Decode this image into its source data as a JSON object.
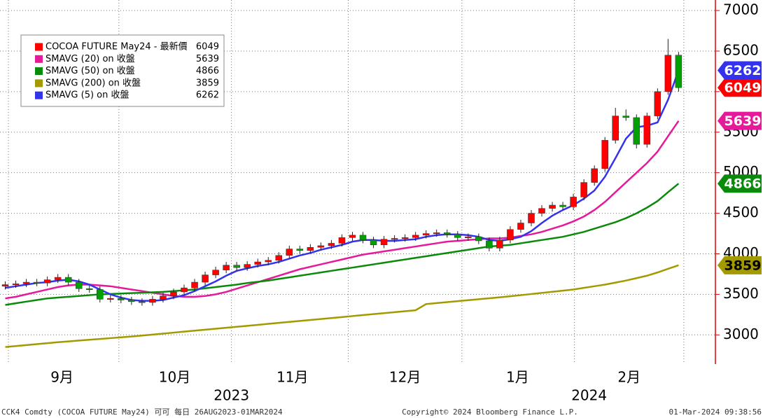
{
  "chart_data": {
    "type": "candlestick",
    "xlim": [
      0,
      68
    ],
    "ylim": [
      2640,
      7130
    ],
    "yticks": [
      3000,
      3500,
      4000,
      4500,
      5000,
      5500,
      6000,
      6500,
      7000
    ],
    "xgrid": [
      0.8,
      11.3,
      22,
      33.1,
      43.9,
      54.6,
      65
    ],
    "xticks": [
      {
        "value": 5.9,
        "label": "9月"
      },
      {
        "value": 16.6,
        "label": "10月"
      },
      {
        "value": 27.8,
        "label": "11月"
      },
      {
        "value": 38.5,
        "label": "12月"
      },
      {
        "value": 49.2,
        "label": "1月"
      },
      {
        "value": 59.8,
        "label": "2月"
      }
    ],
    "years": [
      {
        "value": 22,
        "label": "2023"
      },
      {
        "value": 56,
        "label": "2024"
      }
    ],
    "grid": true,
    "legend": "upper left",
    "up_color": "#ff0000",
    "down_color": "#00a000",
    "footer": {
      "left": "CCK4 Comdty (COCOA FUTURE      May24) 可可  每日 26AUG2023-01MAR2024",
      "center": "Copyright© 2024 Bloomberg Finance L.P.",
      "right": "01-Mar-2024 09:38:56"
    },
    "series": [
      {
        "name": "COCOA FUTURE May24 - 最新價",
        "color": "#ff0000",
        "open": [
          3600,
          3620,
          3630,
          3650,
          3640,
          3680,
          3710,
          3650,
          3570,
          3560,
          3440,
          3450,
          3430,
          3410,
          3400,
          3440,
          3480,
          3530,
          3580,
          3650,
          3740,
          3800,
          3860,
          3830,
          3870,
          3900,
          3920,
          3980,
          4060,
          4040,
          4080,
          4100,
          4130,
          4200,
          4230,
          4170,
          4110,
          4180,
          4190,
          4200,
          4230,
          4250,
          4260,
          4240,
          4200,
          4210,
          4160,
          4070,
          4170,
          4300,
          4380,
          4500,
          4560,
          4600,
          4580,
          4700,
          4880,
          5050,
          5400,
          5700,
          5680,
          5350,
          5700,
          6000,
          6450
        ],
        "high": [
          3660,
          3670,
          3690,
          3690,
          3720,
          3750,
          3750,
          3690,
          3610,
          3600,
          3490,
          3490,
          3470,
          3450,
          3480,
          3520,
          3570,
          3620,
          3690,
          3780,
          3840,
          3900,
          3900,
          3910,
          3940,
          3960,
          4020,
          4100,
          4100,
          4120,
          4140,
          4170,
          4240,
          4270,
          4270,
          4210,
          4220,
          4230,
          4240,
          4270,
          4290,
          4300,
          4300,
          4280,
          4250,
          4250,
          4200,
          4210,
          4340,
          4420,
          4540,
          4600,
          4640,
          4640,
          4740,
          4920,
          5090,
          5440,
          5800,
          5780,
          5720,
          5740,
          6040,
          6650,
          6490
        ],
        "low": [
          3560,
          3580,
          3590,
          3600,
          3600,
          3640,
          3610,
          3530,
          3520,
          3400,
          3400,
          3390,
          3370,
          3360,
          3360,
          3400,
          3440,
          3490,
          3540,
          3610,
          3700,
          3760,
          3790,
          3790,
          3830,
          3860,
          3880,
          3940,
          4000,
          4000,
          4040,
          4060,
          4090,
          4160,
          4130,
          4070,
          4070,
          4140,
          4150,
          4160,
          4190,
          4210,
          4200,
          4160,
          4160,
          4120,
          4030,
          4030,
          4130,
          4260,
          4340,
          4460,
          4520,
          4540,
          4540,
          4660,
          4840,
          5010,
          5360,
          5640,
          5300,
          5310,
          5660,
          5960,
          6000
        ],
        "close": [
          3620,
          3630,
          3650,
          3640,
          3680,
          3710,
          3650,
          3570,
          3560,
          3440,
          3450,
          3430,
          3410,
          3400,
          3440,
          3480,
          3530,
          3580,
          3650,
          3740,
          3800,
          3860,
          3830,
          3870,
          3900,
          3920,
          3980,
          4060,
          4040,
          4080,
          4100,
          4130,
          4200,
          4230,
          4170,
          4110,
          4180,
          4190,
          4200,
          4230,
          4250,
          4260,
          4240,
          4200,
          4210,
          4160,
          4070,
          4170,
          4300,
          4380,
          4500,
          4560,
          4600,
          4580,
          4700,
          4880,
          5050,
          5400,
          5700,
          5680,
          5350,
          5700,
          6000,
          6450,
          6049
        ]
      },
      {
        "name": "SMAVG (20)  on 收盤",
        "color": "#e6199b",
        "values": [
          3450,
          3470,
          3500,
          3530,
          3560,
          3590,
          3610,
          3620,
          3620,
          3610,
          3600,
          3580,
          3560,
          3540,
          3520,
          3500,
          3480,
          3470,
          3470,
          3480,
          3500,
          3530,
          3570,
          3610,
          3650,
          3690,
          3730,
          3770,
          3810,
          3840,
          3870,
          3900,
          3930,
          3960,
          3990,
          4010,
          4030,
          4050,
          4070,
          4090,
          4110,
          4130,
          4150,
          4160,
          4170,
          4180,
          4190,
          4190,
          4200,
          4220,
          4240,
          4270,
          4310,
          4350,
          4400,
          4460,
          4540,
          4640,
          4760,
          4880,
          5000,
          5120,
          5260,
          5450,
          5639
        ]
      },
      {
        "name": "SMAVG (50)  on 收盤",
        "color": "#0a8a0a",
        "values": [
          3370,
          3390,
          3410,
          3430,
          3450,
          3460,
          3470,
          3480,
          3490,
          3500,
          3505,
          3510,
          3515,
          3520,
          3525,
          3530,
          3540,
          3550,
          3560,
          3575,
          3590,
          3605,
          3620,
          3640,
          3655,
          3670,
          3690,
          3710,
          3730,
          3750,
          3770,
          3790,
          3810,
          3830,
          3850,
          3870,
          3890,
          3910,
          3930,
          3950,
          3970,
          3990,
          4010,
          4030,
          4050,
          4070,
          4090,
          4100,
          4110,
          4130,
          4150,
          4170,
          4190,
          4210,
          4240,
          4270,
          4310,
          4350,
          4390,
          4440,
          4500,
          4570,
          4650,
          4760,
          4866
        ]
      },
      {
        "name": "SMAVG (200)  on 收盤",
        "color": "#a39a00",
        "values": [
          2850,
          2862,
          2874,
          2886,
          2898,
          2910,
          2920,
          2930,
          2940,
          2950,
          2960,
          2970,
          2980,
          2992,
          3004,
          3016,
          3028,
          3040,
          3052,
          3064,
          3076,
          3088,
          3100,
          3112,
          3124,
          3136,
          3148,
          3160,
          3172,
          3184,
          3196,
          3208,
          3220,
          3232,
          3244,
          3256,
          3268,
          3280,
          3292,
          3304,
          3380,
          3392,
          3404,
          3416,
          3428,
          3440,
          3452,
          3464,
          3476,
          3490,
          3504,
          3518,
          3532,
          3546,
          3560,
          3580,
          3600,
          3620,
          3645,
          3670,
          3700,
          3730,
          3770,
          3815,
          3859
        ]
      },
      {
        "name": "SMAVG (5)  on 收盤",
        "color": "#3333ee",
        "values": [
          3580,
          3600,
          3620,
          3640,
          3650,
          3670,
          3680,
          3660,
          3620,
          3560,
          3500,
          3460,
          3430,
          3420,
          3420,
          3430,
          3460,
          3490,
          3540,
          3600,
          3660,
          3730,
          3790,
          3820,
          3850,
          3870,
          3900,
          3940,
          3980,
          4010,
          4050,
          4080,
          4110,
          4150,
          4170,
          4170,
          4160,
          4160,
          4170,
          4180,
          4210,
          4230,
          4240,
          4240,
          4230,
          4210,
          4170,
          4160,
          4180,
          4210,
          4280,
          4380,
          4470,
          4540,
          4600,
          4680,
          4780,
          4950,
          5180,
          5420,
          5560,
          5580,
          5620,
          5900,
          6262
        ]
      }
    ]
  }
}
